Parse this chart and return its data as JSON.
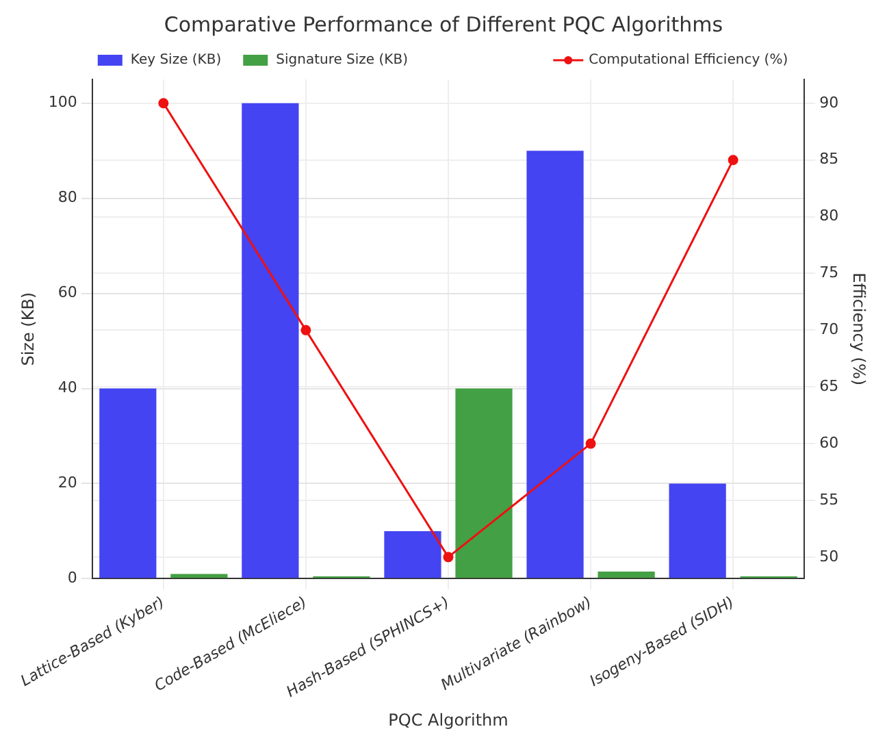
{
  "chart_data": {
    "type": "bar",
    "title": "Comparative Performance of Different PQC Algorithms",
    "xlabel": "PQC Algorithm",
    "ylabel": "Size (KB)",
    "y2label": "Efficiency (%)",
    "categories": [
      "Lattice-Based (Kyber)",
      "Code-Based (McEliece)",
      "Hash-Based (SPHINCS+)",
      "Multivariate (Rainbow)",
      "Isogeny-Based (SIDH)"
    ],
    "series": [
      {
        "name": "Key Size (KB)",
        "color": "#4444f2",
        "values": [
          40,
          100,
          10,
          90,
          20
        ]
      },
      {
        "name": "Signature Size (KB)",
        "color": "#44a044",
        "values": [
          1,
          0.5,
          40,
          1.5,
          0.5
        ]
      },
      {
        "name": "Computational Efficiency (%)",
        "type": "line",
        "axis": "y2",
        "color": "#ee1111",
        "marker": "circle",
        "values": [
          90,
          70,
          50,
          60,
          85
        ]
      }
    ],
    "ylim": [
      0,
      105
    ],
    "yticks": [
      0,
      20,
      40,
      60,
      80,
      100
    ],
    "y2lim": [
      48.1,
      92.1
    ],
    "y2ticks": [
      50,
      55,
      60,
      65,
      70,
      75,
      80,
      85,
      90
    ],
    "grid": true,
    "legend": "top"
  }
}
